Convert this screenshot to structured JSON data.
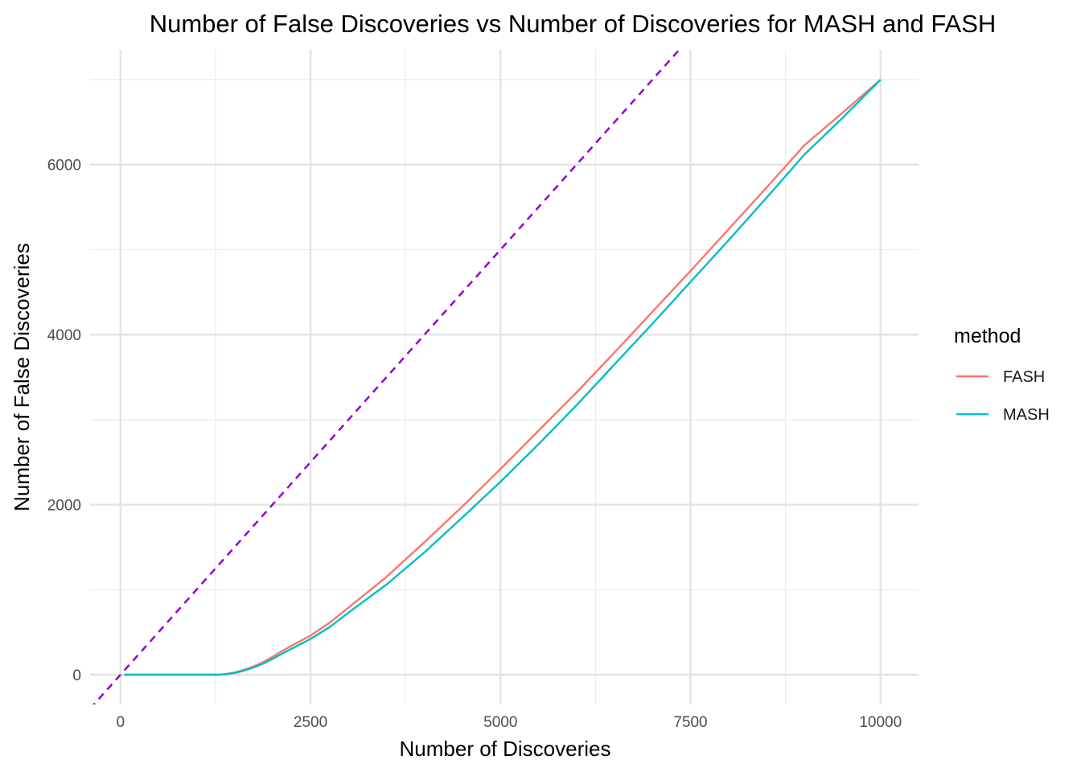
{
  "chart_data": {
    "type": "line",
    "title": "Number of False Discoveries vs Number of Discoveries for MASH and FASH",
    "xlabel": "Number of Discoveries",
    "ylabel": "Number of False Discoveries",
    "xlim": [
      -400,
      10500
    ],
    "ylim": [
      -350,
      7350
    ],
    "x_ticks": [
      0,
      2500,
      5000,
      7500,
      10000
    ],
    "x_tick_labels": [
      "0",
      "2500",
      "5000",
      "7500",
      "10000"
    ],
    "x_minor_ticks": [
      1250,
      3750,
      6250,
      8750
    ],
    "y_ticks": [
      0,
      2000,
      4000,
      6000
    ],
    "y_tick_labels": [
      "0",
      "2000",
      "4000",
      "6000"
    ],
    "y_minor_ticks": [
      1000,
      3000,
      5000,
      7000
    ],
    "grid": true,
    "legend": {
      "title": "method",
      "position": "right"
    },
    "reference_line": {
      "type": "identity",
      "slope": 1,
      "intercept": 0,
      "style": "dashed",
      "color": "#9400D3"
    },
    "series": [
      {
        "name": "FASH",
        "color": "#F8766D",
        "x": [
          50,
          500,
          1000,
          1300,
          1400,
          1500,
          1600,
          1700,
          1800,
          1900,
          2000,
          2100,
          2250,
          2500,
          2750,
          3000,
          3500,
          4000,
          4500,
          5000,
          5500,
          6000,
          6500,
          7000,
          7500,
          8000,
          8500,
          9000,
          9500,
          10000
        ],
        "values": [
          0,
          0,
          0,
          0,
          10,
          25,
          50,
          80,
          115,
          160,
          210,
          265,
          340,
          460,
          610,
          790,
          1150,
          1560,
          1980,
          2420,
          2870,
          3320,
          3790,
          4270,
          4750,
          5240,
          5730,
          6230,
          6610,
          7000
        ]
      },
      {
        "name": "MASH",
        "color": "#00BFC4",
        "x": [
          50,
          500,
          1000,
          1300,
          1400,
          1500,
          1600,
          1700,
          1800,
          1900,
          2000,
          2100,
          2250,
          2500,
          2750,
          3000,
          3500,
          4000,
          4500,
          5000,
          5500,
          6000,
          6500,
          7000,
          7500,
          8000,
          8500,
          9000,
          9500,
          10000
        ],
        "values": [
          0,
          0,
          0,
          0,
          8,
          20,
          42,
          70,
          100,
          140,
          185,
          235,
          305,
          420,
          560,
          730,
          1060,
          1440,
          1850,
          2270,
          2710,
          3170,
          3650,
          4130,
          4620,
          5110,
          5610,
          6120,
          6550,
          7000
        ]
      }
    ]
  }
}
